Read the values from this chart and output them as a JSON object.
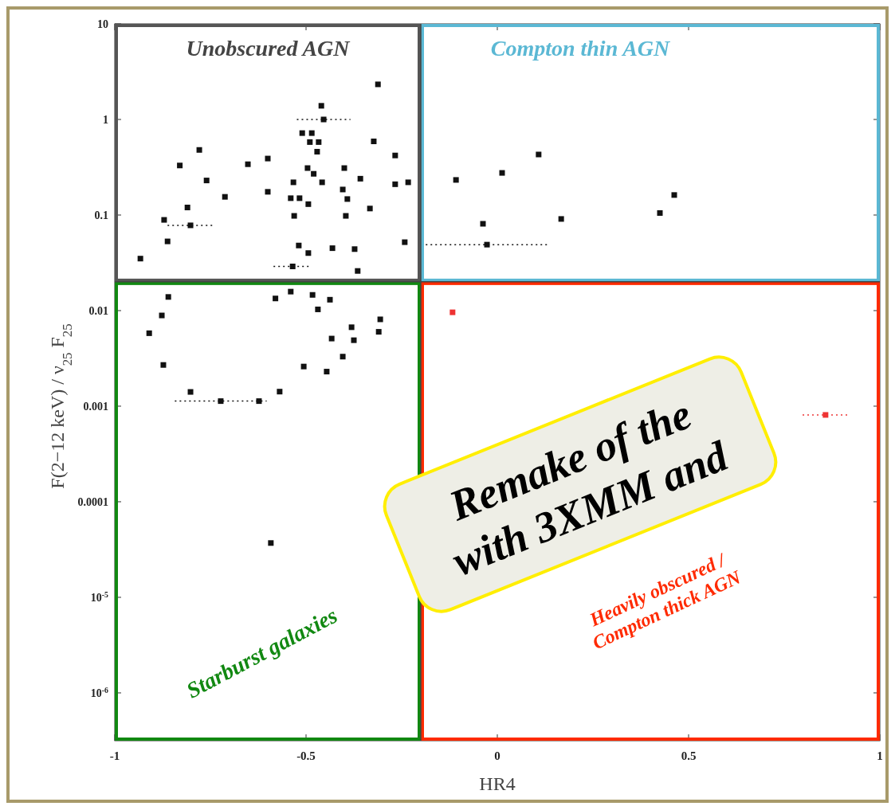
{
  "chart_data": {
    "type": "scatter",
    "xlabel": "HR4",
    "ylabel": "F(2−12 keV) / ν$_{25}$ F$_{25}$",
    "xlim": [
      -1,
      1
    ],
    "xticks": [
      -1,
      -0.5,
      0,
      0.5,
      1
    ],
    "ylim": [
      3.16e-07,
      10
    ],
    "log": "y",
    "yticks": [
      10,
      1,
      0.1,
      0.01,
      0.001,
      0.0001,
      {
        "value": 1e-05,
        "label": "10$^{-5}$"
      },
      {
        "value": 1e-06,
        "label": "10$^{-6}$"
      }
    ],
    "marker": "square",
    "grid": false,
    "ref_lines": [
      {
        "axis": "x",
        "value": -0.2,
        "label": null
      },
      {
        "axis": "y",
        "value": 0.02,
        "label": null
      }
    ],
    "annotations": [
      "Unobscured AGN",
      "Compton thin AGN",
      "Starburst galaxies",
      "Heavily obscured /\nCompton thick AGN",
      "Remake of the",
      "with 3XMM and"
    ],
    "series": [
      {
        "color": "#111111",
        "x": [
          -0.312,
          -0.46,
          -0.454,
          -0.51,
          -0.485,
          -0.49,
          -0.467,
          -0.471,
          -0.323,
          -0.267,
          -0.779,
          -0.83,
          -0.652,
          -0.6,
          -0.496,
          -0.48,
          -0.458,
          -0.4,
          -0.76,
          -0.712,
          -0.6,
          -0.54,
          -0.517,
          -0.494,
          -0.533,
          -0.404,
          -0.392,
          -0.358,
          -0.267,
          -0.233,
          -0.81,
          -0.531,
          -0.396,
          -0.333,
          -0.871,
          -0.802,
          -0.862,
          -0.933,
          -0.519,
          -0.494,
          -0.431,
          -0.373,
          -0.242,
          -0.535,
          -0.365,
          -0.108,
          0.0125,
          0.108,
          -0.0375,
          0.167,
          0.425,
          0.4625,
          -0.027,
          -0.86,
          -0.877,
          -0.91,
          -0.873,
          -0.802,
          -0.723,
          -0.623,
          -0.569,
          -0.54,
          -0.58,
          -0.483,
          -0.4375,
          -0.469,
          -0.306,
          -0.381,
          -0.31,
          -0.433,
          -0.375,
          -0.404,
          -0.506,
          -0.446,
          -0.592
        ],
        "values": [
          2.33,
          1.39,
          1.0,
          0.72,
          0.72,
          0.58,
          0.58,
          0.46,
          0.59,
          0.42,
          0.48,
          0.33,
          0.34,
          0.39,
          0.31,
          0.27,
          0.22,
          0.31,
          0.23,
          0.155,
          0.175,
          0.15,
          0.15,
          0.13,
          0.22,
          0.185,
          0.147,
          0.24,
          0.21,
          0.22,
          0.12,
          0.098,
          0.098,
          0.117,
          0.089,
          0.078,
          0.053,
          0.035,
          0.048,
          0.04,
          0.045,
          0.044,
          0.052,
          0.029,
          0.026,
          0.233,
          0.276,
          0.43,
          0.081,
          0.091,
          0.105,
          0.162,
          0.049,
          0.0139,
          0.0089,
          0.0058,
          0.0027,
          0.00141,
          0.00113,
          0.00113,
          0.00142,
          0.0158,
          0.0134,
          0.0146,
          0.013,
          0.0103,
          0.0081,
          0.0067,
          0.006,
          0.0051,
          0.0049,
          0.0033,
          0.0026,
          0.0023,
          3.7e-05
        ],
        "xerrors": [
          null,
          null,
          0.07,
          null,
          null,
          null,
          null,
          null,
          null,
          null,
          null,
          null,
          null,
          null,
          null,
          null,
          null,
          null,
          null,
          null,
          null,
          null,
          null,
          null,
          null,
          null,
          null,
          null,
          null,
          null,
          null,
          null,
          null,
          null,
          null,
          0.06,
          null,
          null,
          null,
          null,
          null,
          null,
          null,
          0.05,
          null,
          null,
          null,
          null,
          null,
          null,
          null,
          null,
          0.16,
          null,
          null,
          null,
          null,
          null,
          0.12,
          null,
          null,
          null,
          null,
          null,
          null,
          null,
          null,
          null,
          null,
          null,
          null,
          null,
          null,
          null,
          null
        ]
      },
      {
        "color": "#ee3333",
        "x": [
          -0.117,
          0.858
        ],
        "values": [
          0.0096,
          0.00081
        ],
        "xerrors": [
          null,
          0.06
        ]
      }
    ]
  }
}
